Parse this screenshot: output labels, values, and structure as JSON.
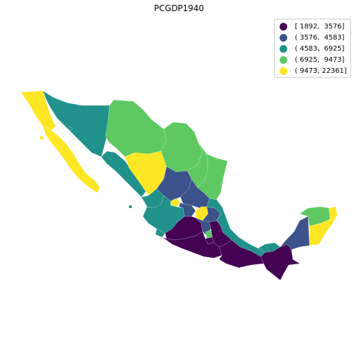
{
  "title": "PCGDP1940",
  "colors": {
    "c1": "#440154",
    "c2": "#3b528b",
    "c3": "#21918c",
    "c4": "#5ec962",
    "c5": "#fde725"
  },
  "legend": [
    {
      "label": "[ 1892,  3576]",
      "color": "#440154"
    },
    {
      "label": "( 3576,  4583]",
      "color": "#3b528b"
    },
    {
      "label": "( 4583,  6925]",
      "color": "#21918c"
    },
    {
      "label": "( 6925,  9473]",
      "color": "#5ec962"
    },
    {
      "label": "( 9473, 22361]",
      "color": "#fde725"
    }
  ]
}
